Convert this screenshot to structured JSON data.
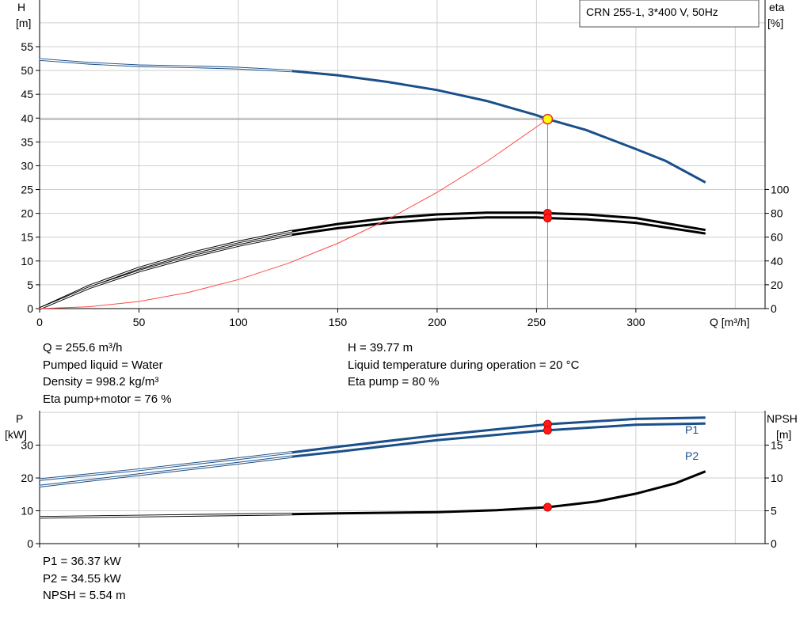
{
  "chart_data": [
    {
      "type": "line",
      "title": "CRN 255-1, 3*400 V, 50Hz",
      "xlabel": "Q [m³/h]",
      "ylabel_left": [
        "H",
        "[m]"
      ],
      "ylabel_right": [
        "eta",
        "[%]"
      ],
      "x_ticks": [
        0,
        50,
        100,
        150,
        200,
        250,
        300
      ],
      "y_ticks_left": [
        0,
        5,
        10,
        15,
        20,
        25,
        30,
        35,
        40,
        45,
        50,
        55
      ],
      "y_ticks_right": [
        0,
        20,
        40,
        60,
        80,
        100
      ],
      "xlim": [
        0,
        365
      ],
      "ylim_left": [
        0,
        64.8
      ],
      "ylim_right": [
        0,
        259
      ],
      "grid": true,
      "series": [
        {
          "key": "H",
          "axis": "left",
          "color": "#1a4f8a",
          "x": [
            0,
            25,
            50,
            75,
            100,
            127,
            150,
            175,
            200,
            225,
            250,
            255.6,
            275,
            300,
            315,
            335
          ],
          "y": [
            52.3,
            51.5,
            51.0,
            50.8,
            50.5,
            49.9,
            49.0,
            47.6,
            45.9,
            43.6,
            40.6,
            39.77,
            37.5,
            33.5,
            31.0,
            26.5
          ],
          "thin_until": 127
        },
        {
          "key": "eta_pump",
          "axis": "right",
          "color": "#000000",
          "x": [
            0,
            25,
            50,
            75,
            100,
            127,
            150,
            175,
            200,
            225,
            250,
            255.6,
            275,
            300,
            335
          ],
          "y": [
            0,
            19,
            34,
            46,
            56,
            65,
            71,
            76,
            79,
            80.5,
            80.5,
            80,
            79,
            76,
            66
          ],
          "thin_until": 127
        },
        {
          "key": "eta_pump_motor",
          "axis": "right",
          "color": "#000000",
          "x": [
            0,
            25,
            50,
            75,
            100,
            127,
            150,
            175,
            200,
            225,
            250,
            255.6,
            275,
            300,
            335
          ],
          "y": [
            0,
            17.5,
            31.5,
            43,
            53,
            62,
            67.5,
            72,
            75,
            76.5,
            76.5,
            76,
            75,
            72,
            63
          ],
          "thin_until": 127
        },
        {
          "key": "system_curve",
          "axis": "left",
          "color": "#ff4a4a",
          "x": [
            0,
            25,
            50,
            75,
            100,
            125,
            150,
            175,
            200,
            225,
            255.6
          ],
          "y": [
            0,
            0.4,
            1.5,
            3.4,
            6.1,
            9.5,
            13.7,
            18.7,
            24.4,
            30.9,
            39.77
          ]
        }
      ],
      "operating_point": {
        "x": 255.6,
        "y": 39.77,
        "eta_pump": 80,
        "eta_pump_motor": 76
      }
    },
    {
      "type": "line",
      "xlim": [
        0,
        365
      ],
      "ylabel_left": [
        "P",
        "[kW]"
      ],
      "ylabel_right": [
        "NPSH",
        "[m]"
      ],
      "y_ticks_left": [
        0,
        10,
        20,
        30
      ],
      "y_ticks_right": [
        0,
        5,
        10,
        15
      ],
      "ylim_left": [
        0,
        40.5
      ],
      "ylim_right": [
        0,
        20.25
      ],
      "grid": true,
      "series": [
        {
          "key": "P1",
          "name": "P1",
          "axis": "left",
          "color": "#1a4f8a",
          "x": [
            0,
            50,
            100,
            127,
            150,
            200,
            255.6,
            300,
            335
          ],
          "y": [
            19.5,
            22.5,
            25.9,
            27.8,
            29.5,
            33.0,
            36.37,
            38.0,
            38.4
          ],
          "thin_until": 127
        },
        {
          "key": "P2",
          "name": "P2",
          "axis": "left",
          "color": "#1a4f8a",
          "x": [
            0,
            50,
            100,
            127,
            150,
            200,
            255.6,
            300,
            335
          ],
          "y": [
            17.5,
            21.0,
            24.5,
            26.5,
            28.0,
            31.5,
            34.55,
            36.2,
            36.6
          ],
          "thin_until": 127
        },
        {
          "key": "NPSH",
          "axis": "right",
          "color": "#000000",
          "x": [
            0,
            50,
            100,
            127,
            150,
            200,
            230,
            255.6,
            280,
            300,
            320,
            335
          ],
          "y": [
            4.0,
            4.2,
            4.4,
            4.5,
            4.6,
            4.8,
            5.1,
            5.54,
            6.4,
            7.6,
            9.2,
            11.0
          ],
          "thin_until": 127
        }
      ],
      "operating_point": {
        "x": 255.6,
        "P1": 36.37,
        "P2": 34.55,
        "NPSH": 5.54
      }
    }
  ],
  "info_top_left": [
    "Q = 255.6 m³/h",
    "Pumped liquid = Water",
    "Density = 998.2 kg/m³",
    "Eta pump+motor = 76 %"
  ],
  "info_top_right": [
    "H = 39.77 m",
    "Liquid temperature during operation = 20 °C",
    "Eta pump = 80 %"
  ],
  "info_bottom": [
    "P1 = 36.37 kW",
    "P2 = 34.55 kW",
    "NPSH = 5.54 m"
  ]
}
